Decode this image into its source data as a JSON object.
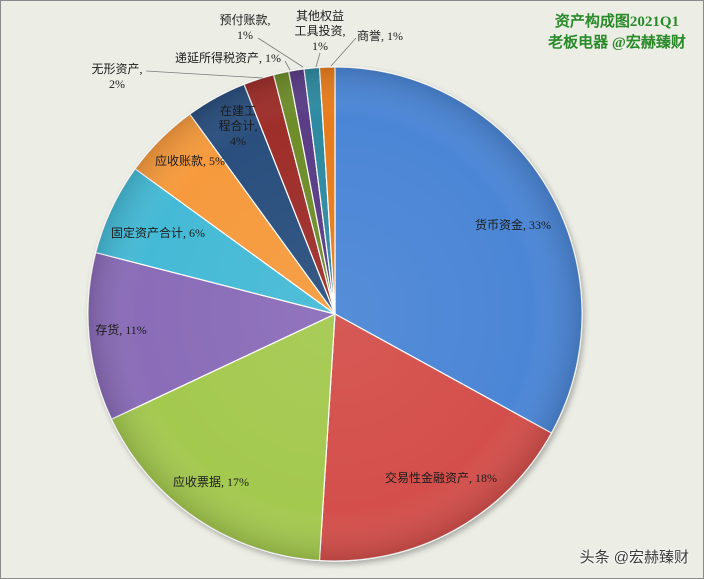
{
  "watermark": "头条 @宏赫臻财",
  "colors": {
    "background": "#eceee6",
    "title": "#2a8a2a"
  },
  "chart_data": {
    "type": "pie",
    "title": "资产构成图2021Q1",
    "subtitle": "老板电器 @宏赫臻财",
    "categories": [
      "货币资金",
      "交易性金融资产",
      "应收票据",
      "存货",
      "固定资产合计",
      "应收账款",
      "在建工程合计",
      "无形资产",
      "递延所得税资产",
      "预付账款",
      "其他权益工具投资",
      "商誉"
    ],
    "values": [
      33,
      18,
      17,
      11,
      6,
      5,
      4,
      2,
      1,
      1,
      1,
      1
    ],
    "unit": "%",
    "colors": [
      "#4b86d6",
      "#d4504b",
      "#a4c94f",
      "#8a6cb8",
      "#45bad6",
      "#f69a3d",
      "#2b4f7e",
      "#9e2f2c",
      "#6e8d2c",
      "#5a3e86",
      "#2f8aa1",
      "#e77c1e"
    ],
    "data_labels": [
      [
        "货币资金, 33%"
      ],
      [
        "交易性金融资产, 18%"
      ],
      [
        "应收票据, 17%"
      ],
      [
        "存货, 11%"
      ],
      [
        "固定资产合计, 6%"
      ],
      [
        "应收账款, 5%"
      ],
      [
        "在建工",
        "程合计,",
        "4%"
      ],
      [
        "无形资产,",
        "2%"
      ],
      [
        "递延所得税资产, 1%"
      ],
      [
        "预付账款,",
        "1%"
      ],
      [
        "其他权益",
        "工具投资,",
        "1%"
      ],
      [
        "商誉, 1%"
      ]
    ]
  }
}
